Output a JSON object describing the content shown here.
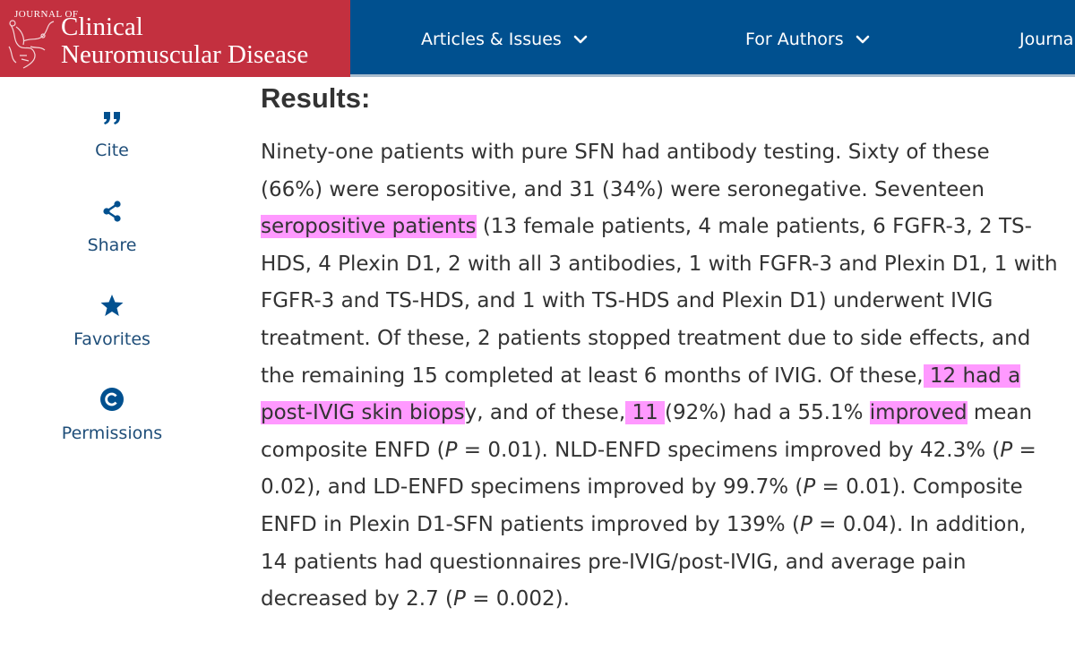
{
  "brand": {
    "journal_of": "JOURNAL OF",
    "line1": "Clinical",
    "line2": "Neuromuscular Disease",
    "color": "#c3303f"
  },
  "nav": {
    "color": "#00508f",
    "items": [
      {
        "label": "Articles & Issues"
      },
      {
        "label": "For Authors"
      },
      {
        "label": "Journal"
      }
    ]
  },
  "sidebar": {
    "items": [
      {
        "label": "Cite",
        "icon": "quote-icon"
      },
      {
        "label": "Share",
        "icon": "share-icon"
      },
      {
        "label": "Favorites",
        "icon": "star-icon"
      },
      {
        "label": "Permissions",
        "icon": "copyright-icon"
      }
    ]
  },
  "article": {
    "heading": "Results:",
    "highlight_color": "#ff99ff",
    "segments": {
      "s1": "Ninety-one patients with pure SFN had antibody testing. Sixty of these (66%) were seropositive, and 31 (34%) were seronegative. Seventeen ",
      "h1": "seropositive patients",
      "s2": " (13 female patients, 4 male patients, 6 FGFR-3, 2 TS-HDS, 4 Plexin D1, 2 with all 3 antibodies, 1 with FGFR-3 and Plexin D1, 1 with FGFR-3 and TS-HDS, and 1 with TS-HDS and Plexin D1) underwent IVIG treatment. Of these, 2 patients stopped treatment due to side effects, and the remaining 15 completed at least 6 months of IVIG. Of these,",
      "h2": " 12 had a post-IVIG skin biops",
      "s3": "y, and of these,",
      "h3": " 11 ",
      "s4": "(92%) had a 55.1% ",
      "h4": "improved",
      "s5": " mean composite ENFD (",
      "p1": "P",
      "s6": " = 0.01). NLD-ENFD specimens improved by 42.3% (",
      "p2": "P",
      "s7": " = 0.02), and LD-ENFD specimens improved by 99.7% (",
      "p3": "P",
      "s8": " = 0.01). Composite ENFD in Plexin D1-SFN patients improved by 139% (",
      "p4": "P",
      "s9": " = 0.04). In addition, 14 patients had questionnaires pre-IVIG/post-IVIG, and average pain decreased by 2.7 (",
      "p5": "P",
      "s10": " = 0.002)."
    }
  }
}
